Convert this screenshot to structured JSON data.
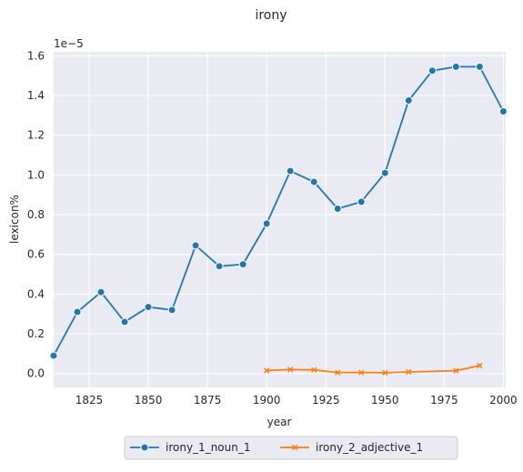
{
  "chart_data": {
    "type": "line",
    "title": "irony",
    "xlabel": "year",
    "ylabel": "lexicon%",
    "y_scale_note": "1e−5",
    "xlim": [
      1810,
      2001
    ],
    "ylim": [
      -0.07,
      1.62
    ],
    "xticks": [
      1825,
      1850,
      1875,
      1900,
      1925,
      1950,
      1975,
      2000
    ],
    "yticks": [
      "0.0",
      "0.2",
      "0.4",
      "0.6",
      "0.8",
      "1.0",
      "1.2",
      "1.4",
      "1.6"
    ],
    "grid": true,
    "legend_position": "bottom-center",
    "background_color": "#eaeaf2",
    "series": [
      {
        "name": "irony_1_noun_1",
        "color": "#1f77b4",
        "marker": "circle",
        "x": [
          1810,
          1820,
          1830,
          1840,
          1850,
          1860,
          1870,
          1880,
          1890,
          1900,
          1910,
          1920,
          1930,
          1940,
          1950,
          1960,
          1970,
          1980,
          1990,
          2000
        ],
        "y": [
          0.09,
          0.31,
          0.41,
          0.26,
          0.335,
          0.32,
          0.645,
          0.54,
          0.55,
          0.755,
          1.02,
          0.965,
          0.83,
          0.865,
          1.01,
          1.375,
          1.525,
          1.545,
          1.545,
          1.32
        ]
      },
      {
        "name": "irony_2_adjective_1",
        "color": "#ff7f0e",
        "marker": "x",
        "x": [
          1900,
          1910,
          1920,
          1930,
          1940,
          1950,
          1960,
          1980,
          1990
        ],
        "y": [
          0.015,
          0.02,
          0.018,
          0.005,
          0.005,
          0.004,
          0.008,
          0.014,
          0.04
        ]
      }
    ]
  }
}
